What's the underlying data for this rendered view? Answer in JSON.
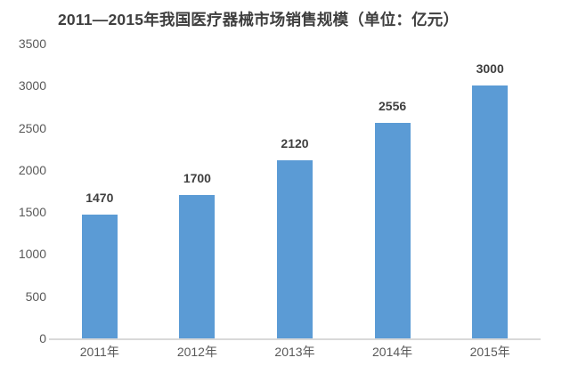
{
  "title": "2011—2015年我国医疗器械市场销售规模（单位：亿元）",
  "colors": {
    "bar": "#5b9bd5",
    "axis_line": "#d9d9d9",
    "tick_label": "#595959",
    "data_label": "#3f3f3f",
    "title": "#3f3f3f",
    "background": "#ffffff"
  },
  "chart_data": {
    "type": "bar",
    "title": "2011—2015年我国医疗器械市场销售规模（单位：亿元）",
    "categories": [
      "2011年",
      "2012年",
      "2013年",
      "2014年",
      "2015年"
    ],
    "values": [
      1470,
      1700,
      2120,
      2556,
      3000
    ],
    "data_labels": [
      "1470",
      "1700",
      "2120",
      "2556",
      "3000"
    ],
    "unit": "亿元",
    "xlabel": "",
    "ylabel": "",
    "ylim": [
      0,
      3500
    ],
    "ytick_interval": 500,
    "yticks": [
      0,
      500,
      1000,
      1500,
      2000,
      2500,
      3000,
      3500
    ],
    "grid": false,
    "legend": "none",
    "data_labels_shown": true
  }
}
